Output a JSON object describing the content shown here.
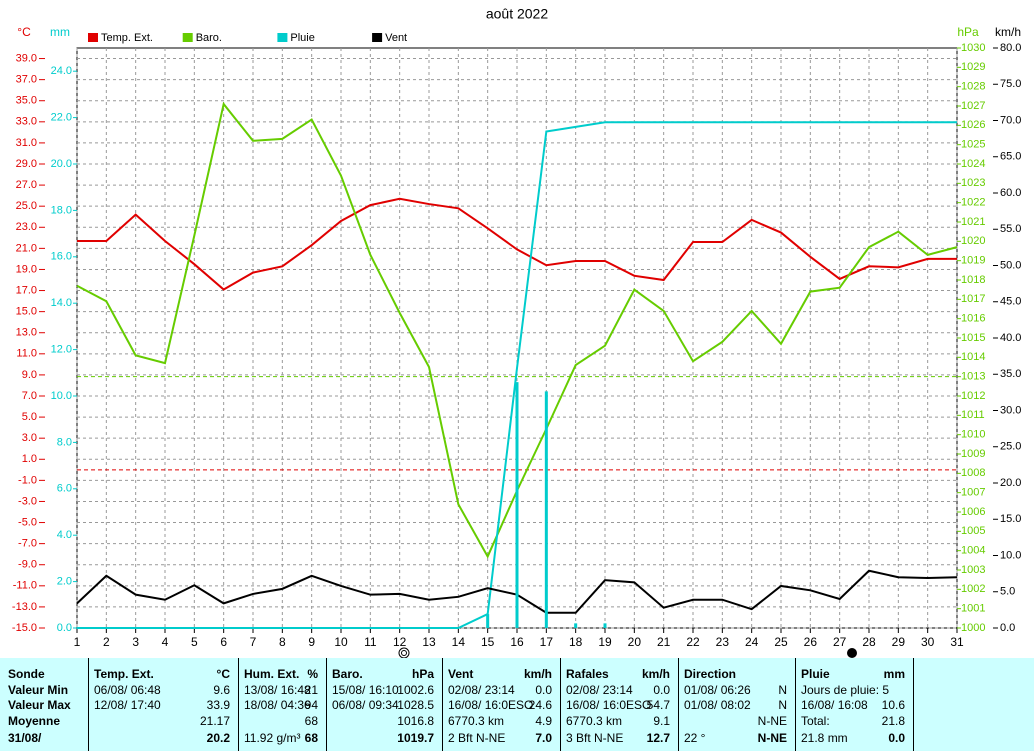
{
  "chart_data": {
    "type": "line",
    "title": "août 2022",
    "x": [
      1,
      2,
      3,
      4,
      5,
      6,
      7,
      8,
      9,
      10,
      11,
      12,
      13,
      14,
      15,
      16,
      17,
      18,
      19,
      20,
      21,
      22,
      23,
      24,
      25,
      26,
      27,
      28,
      29,
      30,
      31
    ],
    "xlim": [
      1,
      31
    ],
    "y_label": "°C",
    "ylim": [
      -15,
      40
    ],
    "yticks": [
      {
        "value": -15,
        "label": "-15.0"
      },
      {
        "value": -13,
        "label": "-13.0"
      },
      {
        "value": -11,
        "label": "-11.0"
      },
      {
        "value": -9,
        "label": "-9.0"
      },
      {
        "value": -7,
        "label": "-7.0"
      },
      {
        "value": -5,
        "label": "-5.0"
      },
      {
        "value": -3,
        "label": "-3.0"
      },
      {
        "value": -1,
        "label": "-1.0"
      },
      {
        "value": 1,
        "label": "1.0"
      },
      {
        "value": 3,
        "label": "3.0"
      },
      {
        "value": 5,
        "label": "5.0"
      },
      {
        "value": 7,
        "label": "7.0"
      },
      {
        "value": 9,
        "label": "9.0"
      },
      {
        "value": 11,
        "label": "11.0"
      },
      {
        "value": 13,
        "label": "13.0"
      },
      {
        "value": 15,
        "label": "15.0"
      },
      {
        "value": 17,
        "label": "17.0"
      },
      {
        "value": 19,
        "label": "19.0"
      },
      {
        "value": 21,
        "label": "21.0"
      },
      {
        "value": 23,
        "label": "23.0"
      },
      {
        "value": 25,
        "label": "25.0"
      },
      {
        "value": 27,
        "label": "27.0"
      },
      {
        "value": 29,
        "label": "29.0"
      },
      {
        "value": 31,
        "label": "31.0"
      },
      {
        "value": 33,
        "label": "33.0"
      },
      {
        "value": 35,
        "label": "35.0"
      },
      {
        "value": 37,
        "label": "37.0"
      },
      {
        "value": 39,
        "label": "39.0"
      }
    ],
    "y2_label": "mm",
    "y2lim": [
      0,
      25
    ],
    "y2ticks": [
      {
        "value": 0,
        "label": "0.0"
      },
      {
        "value": 2,
        "label": "2.0"
      },
      {
        "value": 4,
        "label": "4.0"
      },
      {
        "value": 6,
        "label": "6.0"
      },
      {
        "value": 8,
        "label": "8.0"
      },
      {
        "value": 10,
        "label": "10.0"
      },
      {
        "value": 12,
        "label": "12.0"
      },
      {
        "value": 14,
        "label": "14.0"
      },
      {
        "value": 16,
        "label": "16.0"
      },
      {
        "value": 18,
        "label": "18.0"
      },
      {
        "value": 20,
        "label": "20.0"
      },
      {
        "value": 22,
        "label": "22.0"
      },
      {
        "value": 24,
        "label": "24.0"
      }
    ],
    "y3_label": "hPa",
    "y3lim": [
      1000,
      1030
    ],
    "y3ticks": [
      1000,
      1001,
      1002,
      1003,
      1004,
      1005,
      1006,
      1007,
      1008,
      1009,
      1010,
      1011,
      1012,
      1013,
      1014,
      1015,
      1016,
      1017,
      1018,
      1019,
      1020,
      1021,
      1022,
      1023,
      1024,
      1025,
      1026,
      1027,
      1028,
      1029,
      1030
    ],
    "y4_label": "km/h",
    "y4lim": [
      0,
      80
    ],
    "y4ticks": [
      {
        "value": 0,
        "label": "0.0"
      },
      {
        "value": 5,
        "label": "5.0"
      },
      {
        "value": 10,
        "label": "10.0"
      },
      {
        "value": 15,
        "label": "15.0"
      },
      {
        "value": 20,
        "label": "20.0"
      },
      {
        "value": 25,
        "label": "25.0"
      },
      {
        "value": 30,
        "label": "30.0"
      },
      {
        "value": 35,
        "label": "35.0"
      },
      {
        "value": 40,
        "label": "40.0"
      },
      {
        "value": 45,
        "label": "45.0"
      },
      {
        "value": 50,
        "label": "50.0"
      },
      {
        "value": 55,
        "label": "55.0"
      },
      {
        "value": 60,
        "label": "60.0"
      },
      {
        "value": 65,
        "label": "65.0"
      },
      {
        "value": 70,
        "label": "70.0"
      },
      {
        "value": 75,
        "label": "75.0"
      },
      {
        "value": 80,
        "label": "80.0"
      }
    ],
    "grid": true,
    "reference_lines": [
      {
        "axis": "y",
        "value": 0,
        "color": "#e00000"
      },
      {
        "axis": "y3",
        "value": 1013,
        "color": "#66cc00"
      }
    ],
    "series": [
      {
        "name": "Temp. Ext.",
        "color": "#e00000",
        "axis": "y",
        "values": [
          21.7,
          21.7,
          24.2,
          21.7,
          19.5,
          17.1,
          18.7,
          19.3,
          21.3,
          23.6,
          25.1,
          25.7,
          25.2,
          24.8,
          22.9,
          20.9,
          19.4,
          19.8,
          19.8,
          18.4,
          18.0,
          21.6,
          21.6,
          23.7,
          22.5,
          20.2,
          18.1,
          19.3,
          19.2,
          20.0,
          20.0
        ]
      },
      {
        "name": "Baro.",
        "color": "#66cc00",
        "axis": "y3",
        "values": [
          1017.7,
          1016.9,
          1014.1,
          1013.7,
          1020.3,
          1027.1,
          1025.2,
          1025.3,
          1026.3,
          1023.4,
          1019.3,
          1016.3,
          1013.5,
          1006.4,
          1003.7,
          1007.1,
          1010.3,
          1013.6,
          1014.6,
          1017.5,
          1016.4,
          1013.8,
          1014.8,
          1016.4,
          1014.7,
          1017.4,
          1017.6,
          1019.7,
          1020.5,
          1019.3,
          1019.7
        ]
      },
      {
        "name": "Pluie",
        "color": "#00cccc",
        "axis": "y2",
        "values": [
          0,
          0,
          0,
          0,
          0,
          0,
          0,
          0,
          0,
          0,
          0,
          0,
          0,
          0,
          0.6,
          11.2,
          21.4,
          21.6,
          21.8,
          21.8,
          21.8,
          21.8,
          21.8,
          21.8,
          21.8,
          21.8,
          21.8,
          21.8,
          21.8,
          21.8,
          21.8
        ]
      },
      {
        "name": "Vent",
        "color": "#000000",
        "axis": "y4",
        "values": [
          3.4,
          7.2,
          4.6,
          3.9,
          5.9,
          3.4,
          4.7,
          5.4,
          7.2,
          5.8,
          4.6,
          4.7,
          3.9,
          4.3,
          5.5,
          4.6,
          2.1,
          2.1,
          6.6,
          6.3,
          2.8,
          3.9,
          3.9,
          2.6,
          5.8,
          5.2,
          4.0,
          7.9,
          7.0,
          6.9,
          7.0
        ]
      },
      {
        "style": "bar",
        "color": "#00cccc",
        "axis": "y2",
        "values": [
          0,
          0,
          0,
          0,
          0,
          0,
          0,
          0,
          0,
          0,
          0,
          0,
          0,
          0,
          0.6,
          10.6,
          10.2,
          0.2,
          0.2,
          0,
          0,
          0,
          0,
          0,
          0,
          0,
          0,
          0,
          0,
          0,
          0
        ]
      }
    ]
  },
  "table": {
    "row_labels": [
      "Sonde",
      "Valeur Min",
      "Valeur Max",
      "Moyenne",
      "31/08/"
    ],
    "columns": [
      {
        "header": "Temp. Ext.",
        "unit": "°C",
        "cells": [
          {
            "left": "06/08/ 06:48",
            "right": "9.6"
          },
          {
            "left": "12/08/ 17:40",
            "right": "33.9"
          },
          {
            "right": "21.17"
          },
          {
            "right": "20.2"
          }
        ]
      },
      {
        "header": "Hum. Ext.",
        "unit": "%",
        "cells": [
          {
            "left": "13/08/ 16:48",
            "right": "21"
          },
          {
            "left": "18/08/ 04:36",
            "right": "94"
          },
          {
            "right": "68"
          },
          {
            "left": "11.92 g/m³",
            "right": "68"
          }
        ]
      },
      {
        "header": "Baro.",
        "unit": "hPa",
        "cells": [
          {
            "left": "15/08/ 16:10",
            "right": "1002.6"
          },
          {
            "left": "06/08/ 09:34",
            "right": "1028.5"
          },
          {
            "right": "1016.8"
          },
          {
            "right": "1019.7"
          }
        ]
      },
      {
        "header": "Vent",
        "unit": "km/h",
        "cells": [
          {
            "left": "02/08/ 23:14",
            "right": "0.0"
          },
          {
            "left": "16/08/ 16:0ESO",
            "right": "24.6"
          },
          {
            "left": "6770.3 km",
            "right": "4.9"
          },
          {
            "left": "2 Bft N-NE",
            "right": "7.0"
          }
        ]
      },
      {
        "header": "Rafales",
        "unit": "km/h",
        "cells": [
          {
            "left": "02/08/ 23:14",
            "right": "0.0"
          },
          {
            "left": "16/08/ 16:0ESO",
            "right": "54.7"
          },
          {
            "left": "6770.3 km",
            "right": "9.1"
          },
          {
            "left": "3 Bft N-NE",
            "right": "12.7"
          }
        ]
      },
      {
        "header": "Direction",
        "cells": [
          {
            "left": "01/08/ 06:26",
            "right": "N"
          },
          {
            "left": "01/08/ 08:02",
            "right": "N"
          },
          {
            "right": "N-NE"
          },
          {
            "left": "22 °",
            "right": "N-NE"
          }
        ]
      },
      {
        "header": "Pluie",
        "unit": "mm",
        "cells": [
          {
            "left": "Jours de pluie: 5"
          },
          {
            "left": "16/08/ 16:08",
            "right": "10.6"
          },
          {
            "left": "Total:",
            "right": "21.8"
          },
          {
            "left": "21.8 mm",
            "right": "0.0"
          }
        ]
      }
    ]
  }
}
